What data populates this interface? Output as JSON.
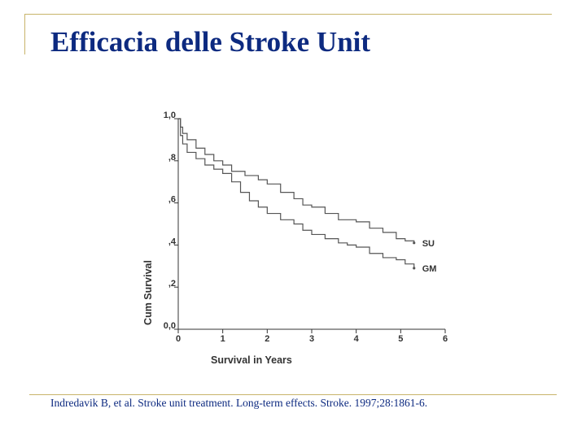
{
  "slide": {
    "title": "Efficacia delle Stroke Unit",
    "citation": "Indredavik B, et al. Stroke unit treatment. Long-term effects. Stroke. 1997;28:1861-6."
  },
  "colors": {
    "title": "#0d2a80",
    "rule": "#c8b46a",
    "curve": "#555555"
  },
  "chart_data": {
    "type": "line",
    "title": "",
    "xlabel": "Survival in Years",
    "ylabel": "Cum Survival",
    "xlim": [
      0,
      6
    ],
    "ylim": [
      0,
      1
    ],
    "xticks": [
      "0",
      "1",
      "2",
      "3",
      "4",
      "5",
      "6"
    ],
    "yticks": [
      "0,0",
      ",2",
      ",4",
      ",6",
      ",8",
      "1,0"
    ],
    "grid": false,
    "series": [
      {
        "name": "SU",
        "x": [
          0,
          0.05,
          0.1,
          0.2,
          0.4,
          0.6,
          0.8,
          1.0,
          1.2,
          1.5,
          1.8,
          2.0,
          2.3,
          2.6,
          2.8,
          3.0,
          3.3,
          3.6,
          3.8,
          4.0,
          4.3,
          4.6,
          4.9,
          5.1,
          5.3
        ],
        "y": [
          1.0,
          0.96,
          0.93,
          0.9,
          0.86,
          0.83,
          0.8,
          0.78,
          0.75,
          0.73,
          0.71,
          0.69,
          0.65,
          0.62,
          0.59,
          0.58,
          0.55,
          0.52,
          0.52,
          0.51,
          0.48,
          0.46,
          0.43,
          0.42,
          0.41
        ]
      },
      {
        "name": "GM",
        "x": [
          0,
          0.05,
          0.1,
          0.2,
          0.4,
          0.6,
          0.8,
          1.0,
          1.2,
          1.4,
          1.6,
          1.8,
          2.0,
          2.3,
          2.6,
          2.8,
          3.0,
          3.3,
          3.6,
          3.8,
          4.0,
          4.3,
          4.6,
          4.9,
          5.1,
          5.3
        ],
        "y": [
          1.0,
          0.92,
          0.88,
          0.84,
          0.81,
          0.78,
          0.76,
          0.74,
          0.7,
          0.65,
          0.61,
          0.58,
          0.55,
          0.52,
          0.5,
          0.47,
          0.45,
          0.43,
          0.41,
          0.4,
          0.39,
          0.36,
          0.34,
          0.33,
          0.31,
          0.29
        ]
      }
    ]
  }
}
